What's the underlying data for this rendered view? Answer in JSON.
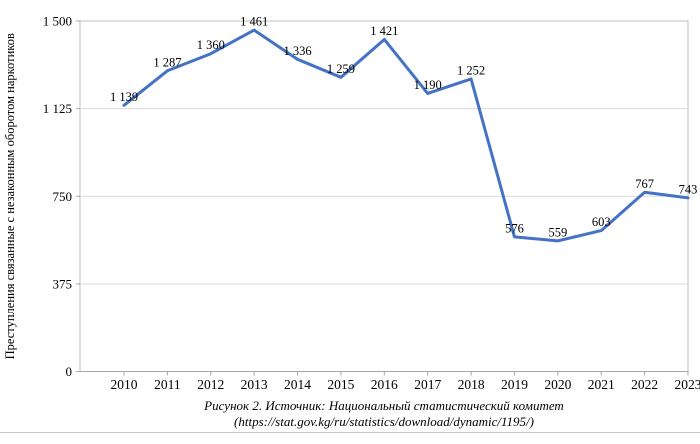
{
  "chart_data": {
    "type": "line",
    "title": "",
    "categories": [
      "2010",
      "2011",
      "2012",
      "2013",
      "2014",
      "2015",
      "2016",
      "2017",
      "2018",
      "2019",
      "2020",
      "2021",
      "2022",
      "2023"
    ],
    "series": [
      {
        "name": "Преступления связанные с незаконным оборотом наркотиков",
        "values": [
          1139,
          1287,
          1360,
          1461,
          1336,
          1259,
          1421,
          1190,
          1252,
          576,
          559,
          603,
          767,
          743
        ]
      }
    ],
    "data_labels": [
      "1 139",
      "1 287",
      "1 360",
      "1 461",
      "1 336",
      "1 259",
      "1 421",
      "1 190",
      "1 252",
      "576",
      "559",
      "603",
      "767",
      "743"
    ],
    "xlabel": "",
    "ylabel": "Преступления  связанные с незаконным оборотом наркотиков",
    "ylim": [
      0,
      1500
    ],
    "yticks": [
      {
        "value": 0,
        "label": "0"
      },
      {
        "value": 375,
        "label": "375"
      },
      {
        "value": 750,
        "label": "750"
      },
      {
        "value": 1125,
        "label": "1 125"
      },
      {
        "value": 1500,
        "label": "1 500"
      }
    ],
    "grid": "horizontal",
    "legend": "none",
    "line_color": "#4472C4"
  },
  "colors": {
    "line": "#4472C4",
    "plot_border": "#bfbfbf",
    "axis": "#a6a6a6",
    "gridline": "#d9d9d9",
    "text": "#000000",
    "page_rule": "#c2c8c2"
  },
  "caption": {
    "line1": "Рисунок 2. Источник: Национальный статистический комитет",
    "line2": "(https://stat.gov.kg/ru/statistics/download/dynamic/1195/)"
  }
}
